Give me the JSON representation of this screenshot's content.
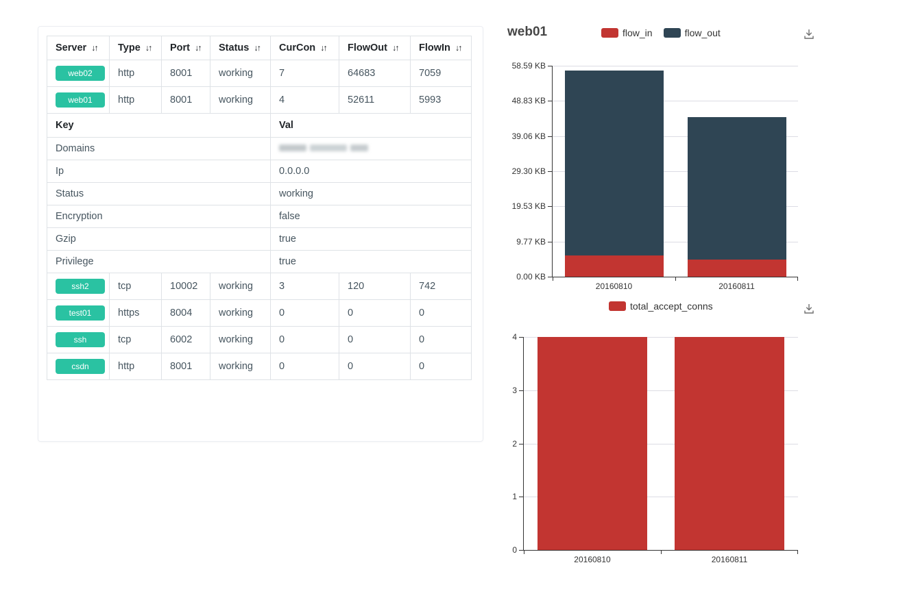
{
  "colors": {
    "badge": "#2ac2a2",
    "flow_in": "#c23531",
    "flow_out": "#2f4554",
    "header_text": "#212529",
    "cell_text": "#46555f",
    "table_border": "#dee2e6",
    "axis_label": "#333333",
    "grid_line": "#dcdce4"
  },
  "left_panel": {
    "table": {
      "sort_icon": "↓↑",
      "columns": [
        "Server",
        "Type",
        "Port",
        "Status",
        "CurCon",
        "FlowOut",
        "FlowIn"
      ],
      "rows_top": [
        {
          "server": "web02",
          "type": "http",
          "port": "8001",
          "status": "working",
          "curcon": "7",
          "flowout": "64683",
          "flowin": "7059"
        },
        {
          "server": "web01",
          "type": "http",
          "port": "8001",
          "status": "working",
          "curcon": "4",
          "flowout": "52611",
          "flowin": "5993"
        }
      ],
      "detail": {
        "key_header": "Key",
        "val_header": "Val",
        "rows": [
          {
            "key": "Domains",
            "val": "",
            "redacted": true
          },
          {
            "key": "Ip",
            "val": "0.0.0.0"
          },
          {
            "key": "Status",
            "val": "working"
          },
          {
            "key": "Encryption",
            "val": "false"
          },
          {
            "key": "Gzip",
            "val": "true"
          },
          {
            "key": "Privilege",
            "val": "true"
          }
        ]
      },
      "rows_bottom": [
        {
          "server": "ssh2",
          "type": "tcp",
          "port": "10002",
          "status": "working",
          "curcon": "3",
          "flowout": "120",
          "flowin": "742"
        },
        {
          "server": "test01",
          "type": "https",
          "port": "8004",
          "status": "working",
          "curcon": "0",
          "flowout": "0",
          "flowin": "0"
        },
        {
          "server": "ssh",
          "type": "tcp",
          "port": "6002",
          "status": "working",
          "curcon": "0",
          "flowout": "0",
          "flowin": "0"
        },
        {
          "server": "csdn",
          "type": "http",
          "port": "8001",
          "status": "working",
          "curcon": "0",
          "flowout": "0",
          "flowin": "0"
        }
      ]
    }
  },
  "chart_data": [
    {
      "type": "bar",
      "stacked": true,
      "title": "web01",
      "categories": [
        "20160810",
        "20160811"
      ],
      "series": [
        {
          "name": "flow_in",
          "color": "#c23531",
          "values": [
            5.85,
            4.75
          ]
        },
        {
          "name": "flow_out",
          "color": "#2f4554",
          "values": [
            51.38,
            39.6
          ]
        }
      ],
      "unit": "KB",
      "xlabel": "",
      "ylabel": "",
      "ylim": [
        0,
        58.59
      ],
      "yticks": [
        "58.59 KB",
        "48.83 KB",
        "39.06 KB",
        "29.30 KB",
        "19.53 KB",
        "9.77 KB",
        "0.00 KB"
      ],
      "grid": true,
      "legend_position": "top-center",
      "toolbox": [
        "download-icon"
      ]
    },
    {
      "type": "bar",
      "stacked": false,
      "title": "",
      "categories": [
        "20160810",
        "20160811"
      ],
      "series": [
        {
          "name": "total_accept_conns",
          "color": "#c23531",
          "values": [
            4,
            4
          ]
        }
      ],
      "unit": "",
      "xlabel": "",
      "ylabel": "",
      "ylim": [
        0,
        4
      ],
      "yticks": [
        "4",
        "3",
        "2",
        "1",
        "0"
      ],
      "grid": true,
      "legend_position": "top-center",
      "toolbox": [
        "download-icon"
      ]
    }
  ]
}
